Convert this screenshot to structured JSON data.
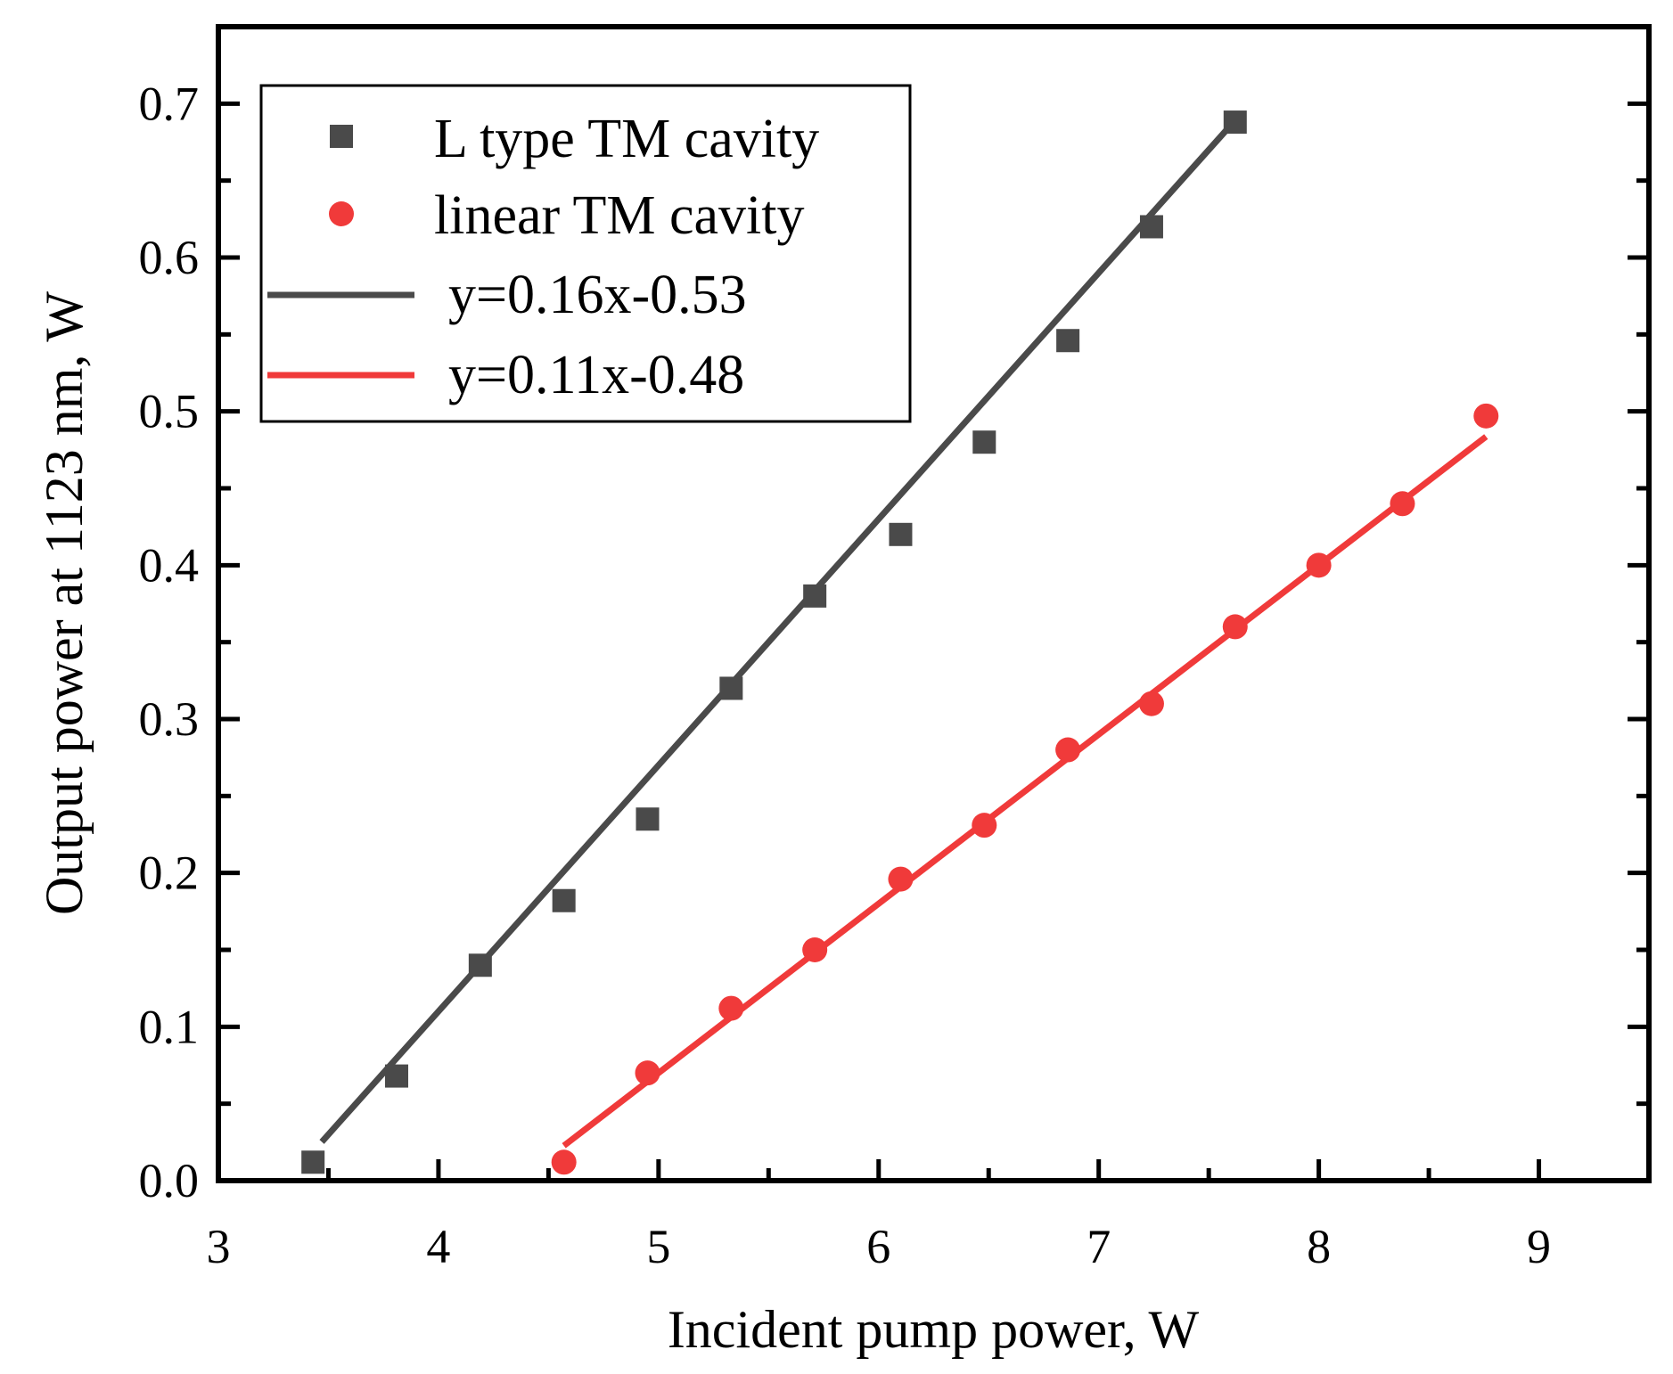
{
  "chart_data": {
    "type": "scatter",
    "xlabel": "Incident pump power, W",
    "ylabel": "Output power at 1123 nm, W",
    "xlim": [
      3,
      9.5
    ],
    "ylim": [
      0,
      0.75
    ],
    "xticks": [
      3,
      4,
      5,
      6,
      7,
      8,
      9
    ],
    "yticks": [
      0.0,
      0.1,
      0.2,
      0.3,
      0.4,
      0.5,
      0.6,
      0.7
    ],
    "ytick_labels": [
      "0.0",
      "0.1",
      "0.2",
      "0.3",
      "0.4",
      "0.5",
      "0.6",
      "0.7"
    ],
    "legend_position": "top-left",
    "series": [
      {
        "name": "L type TM cavity",
        "marker": "square",
        "color": "#4a4a4a",
        "x": [
          3.43,
          3.81,
          4.19,
          4.57,
          4.95,
          5.33,
          5.71,
          6.1,
          6.48,
          6.86,
          7.24,
          7.62
        ],
        "y": [
          0.012,
          0.068,
          0.14,
          0.182,
          0.235,
          0.32,
          0.38,
          0.42,
          0.48,
          0.546,
          0.62,
          0.688
        ]
      },
      {
        "name": "linear TM cavity",
        "marker": "circle",
        "color": "#f03a3a",
        "x": [
          4.57,
          4.95,
          5.33,
          5.71,
          6.1,
          6.48,
          6.86,
          7.24,
          7.62,
          8.0,
          8.38,
          8.76
        ],
        "y": [
          0.012,
          0.07,
          0.112,
          0.15,
          0.196,
          0.231,
          0.28,
          0.31,
          0.36,
          0.4,
          0.44,
          0.497
        ]
      }
    ],
    "fits": [
      {
        "name": "y=0.16x-0.53",
        "color": "#4a4a4a",
        "slope": 0.16,
        "intercept": -0.53,
        "x_range": [
          3.47,
          7.62
        ]
      },
      {
        "name": "y=0.11x-0.48",
        "color": "#f03a3a",
        "slope": 0.11,
        "intercept": -0.48,
        "x_range": [
          4.57,
          8.76
        ]
      }
    ]
  }
}
